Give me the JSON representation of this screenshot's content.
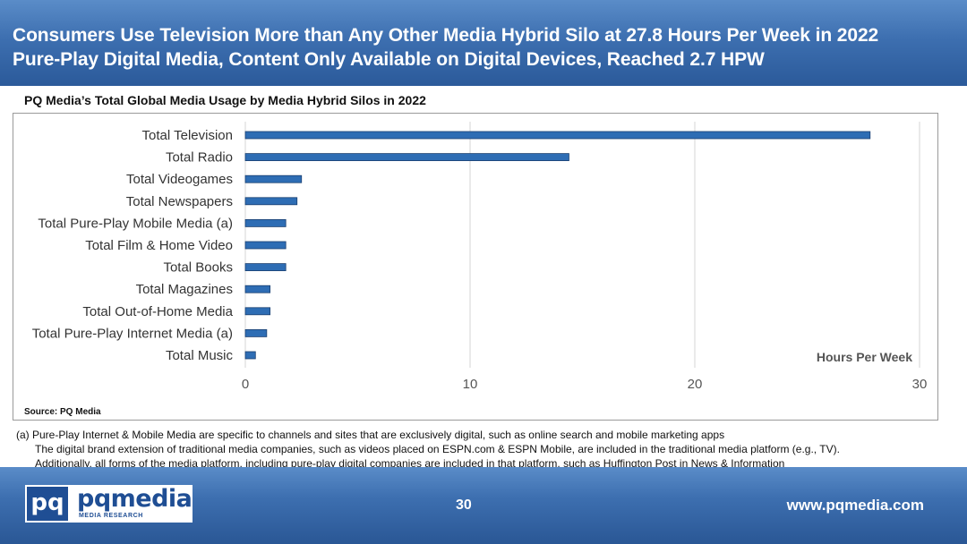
{
  "header": {
    "line1": "Consumers Use Television More than Any Other Media Hybrid Silo at 27.8 Hours Per Week in 2022",
    "line2": "Pure-Play Digital Media, Content Only Available on Digital Devices, Reached 2.7 HPW"
  },
  "chart_data": {
    "type": "bar",
    "orientation": "horizontal",
    "title": "PQ Media’s Total Global Media Usage by Media Hybrid Silos in 2022",
    "categories": [
      "Total Television",
      "Total Radio",
      "Total Videogames",
      "Total Newspapers",
      "Total Pure-Play Mobile Media (a)",
      "Total Film & Home Video",
      "Total Books",
      "Total Magazines",
      "Total Out-of-Home Media",
      "Total Pure-Play Internet Media (a)",
      "Total Music"
    ],
    "values": [
      27.8,
      14.4,
      2.5,
      2.3,
      1.8,
      1.8,
      1.8,
      1.1,
      1.1,
      0.95,
      0.45
    ],
    "xlabel": "Hours Per Week",
    "xlim": [
      0,
      30
    ],
    "xticks": [
      0,
      10,
      20,
      30
    ],
    "grid": true,
    "bar_color": "#2e6db4",
    "source": "Source: PQ Media"
  },
  "footnotes": [
    "(a) Pure-Play Internet & Mobile Media are specific to channels and sites that are exclusively digital, such as online search and mobile marketing apps",
    "The digital brand extension of traditional media companies, such as videos placed on ESPN.com & ESPN Mobile, are included in the traditional media platform (e.g., TV).",
    "Additionally, all forms of the media platform, including pure-play digital companies are included in that platform, such as Huffington Post in News & Information"
  ],
  "footer": {
    "logo_mark": "pq",
    "logo_name": "pqmedia",
    "logo_tagline": "MEDIA RESEARCH",
    "page_number": "30",
    "website": "www.pqmedia.com"
  }
}
